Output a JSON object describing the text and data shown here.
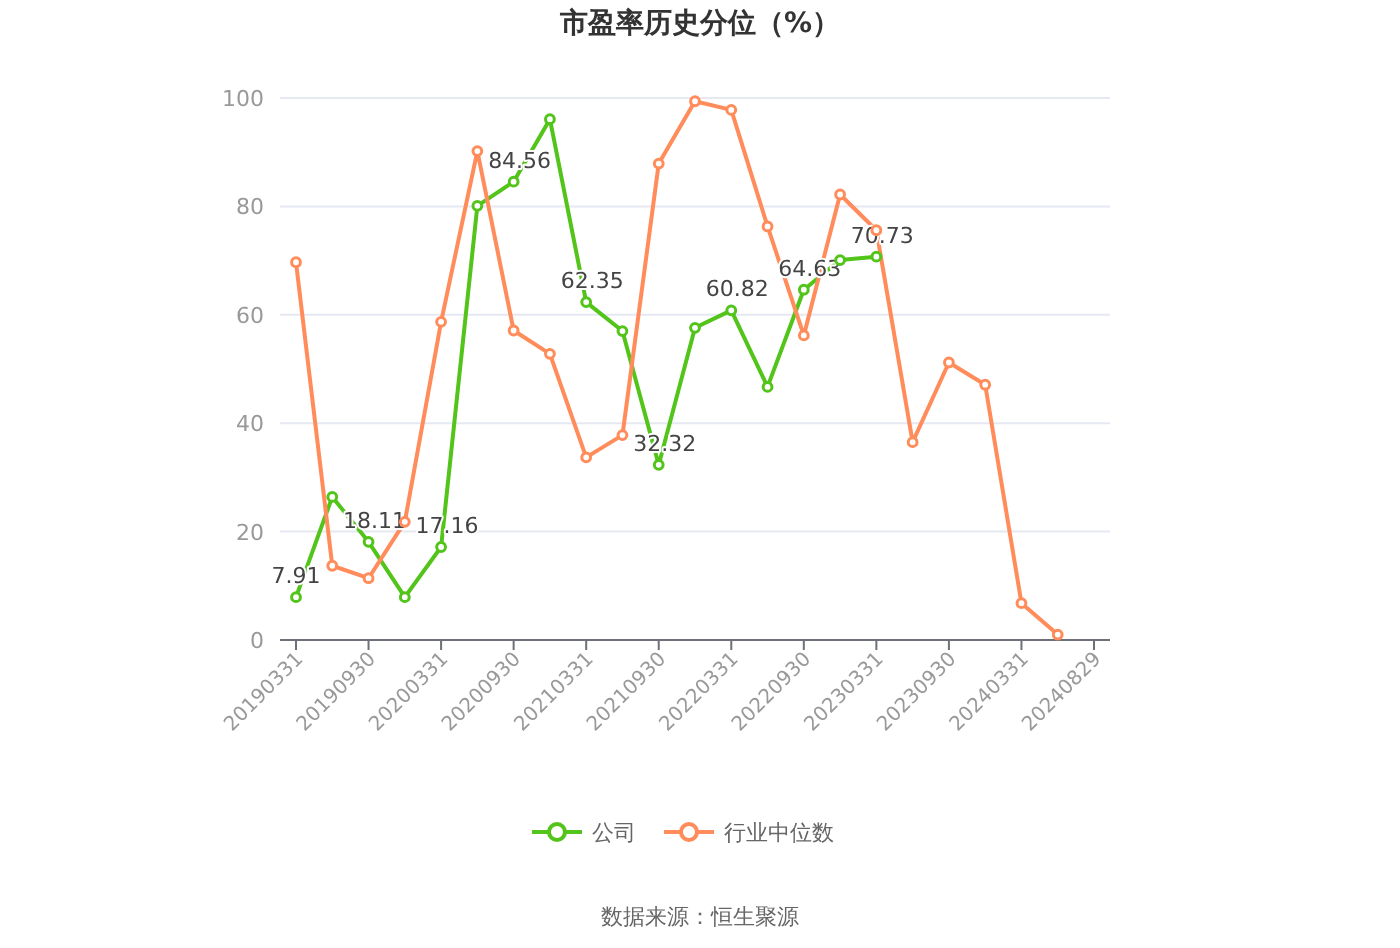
{
  "chart_data": {
    "type": "line",
    "title": "市盈率历史分位（%）",
    "categories": [
      "20190331",
      null,
      "20190930",
      null,
      "20200331",
      null,
      "20200930",
      null,
      "20210331",
      null,
      "20210930",
      null,
      "20220331",
      null,
      "20220930",
      null,
      "20230331",
      null,
      "20230930",
      null,
      "20240331",
      null,
      "20240829"
    ],
    "series": [
      {
        "name": "公司",
        "color": "#52c41a",
        "values": [
          7.91,
          26.4,
          18.11,
          7.9,
          17.16,
          80.1,
          84.56,
          96.1,
          62.35,
          57.0,
          32.32,
          57.6,
          60.82,
          46.7,
          64.63,
          70.1,
          70.73,
          null,
          null,
          null,
          null,
          null,
          null
        ],
        "value_labels": [
          "7.91",
          null,
          "18.11",
          null,
          "17.16",
          null,
          "84.56",
          null,
          "62.35",
          null,
          "32.32",
          null,
          "60.82",
          null,
          "64.63",
          null,
          "70.73",
          null,
          null,
          null,
          null,
          null,
          null
        ]
      },
      {
        "name": "行业中位数",
        "color": "#ff8c5a",
        "values": [
          69.7,
          13.7,
          11.4,
          21.8,
          58.7,
          90.2,
          57.1,
          52.8,
          33.7,
          37.8,
          87.9,
          99.4,
          97.8,
          76.3,
          56.2,
          82.2,
          75.6,
          36.5,
          51.2,
          47.1,
          6.8,
          1.0,
          null
        ]
      }
    ],
    "ylim": [
      0,
      100
    ],
    "yticks": [
      0,
      20,
      40,
      60,
      80,
      100
    ],
    "grid": "y",
    "legend": "bottom",
    "marker": "circle",
    "line_style": "solid",
    "annotations": [
      "数据来源：恒生聚源"
    ]
  }
}
